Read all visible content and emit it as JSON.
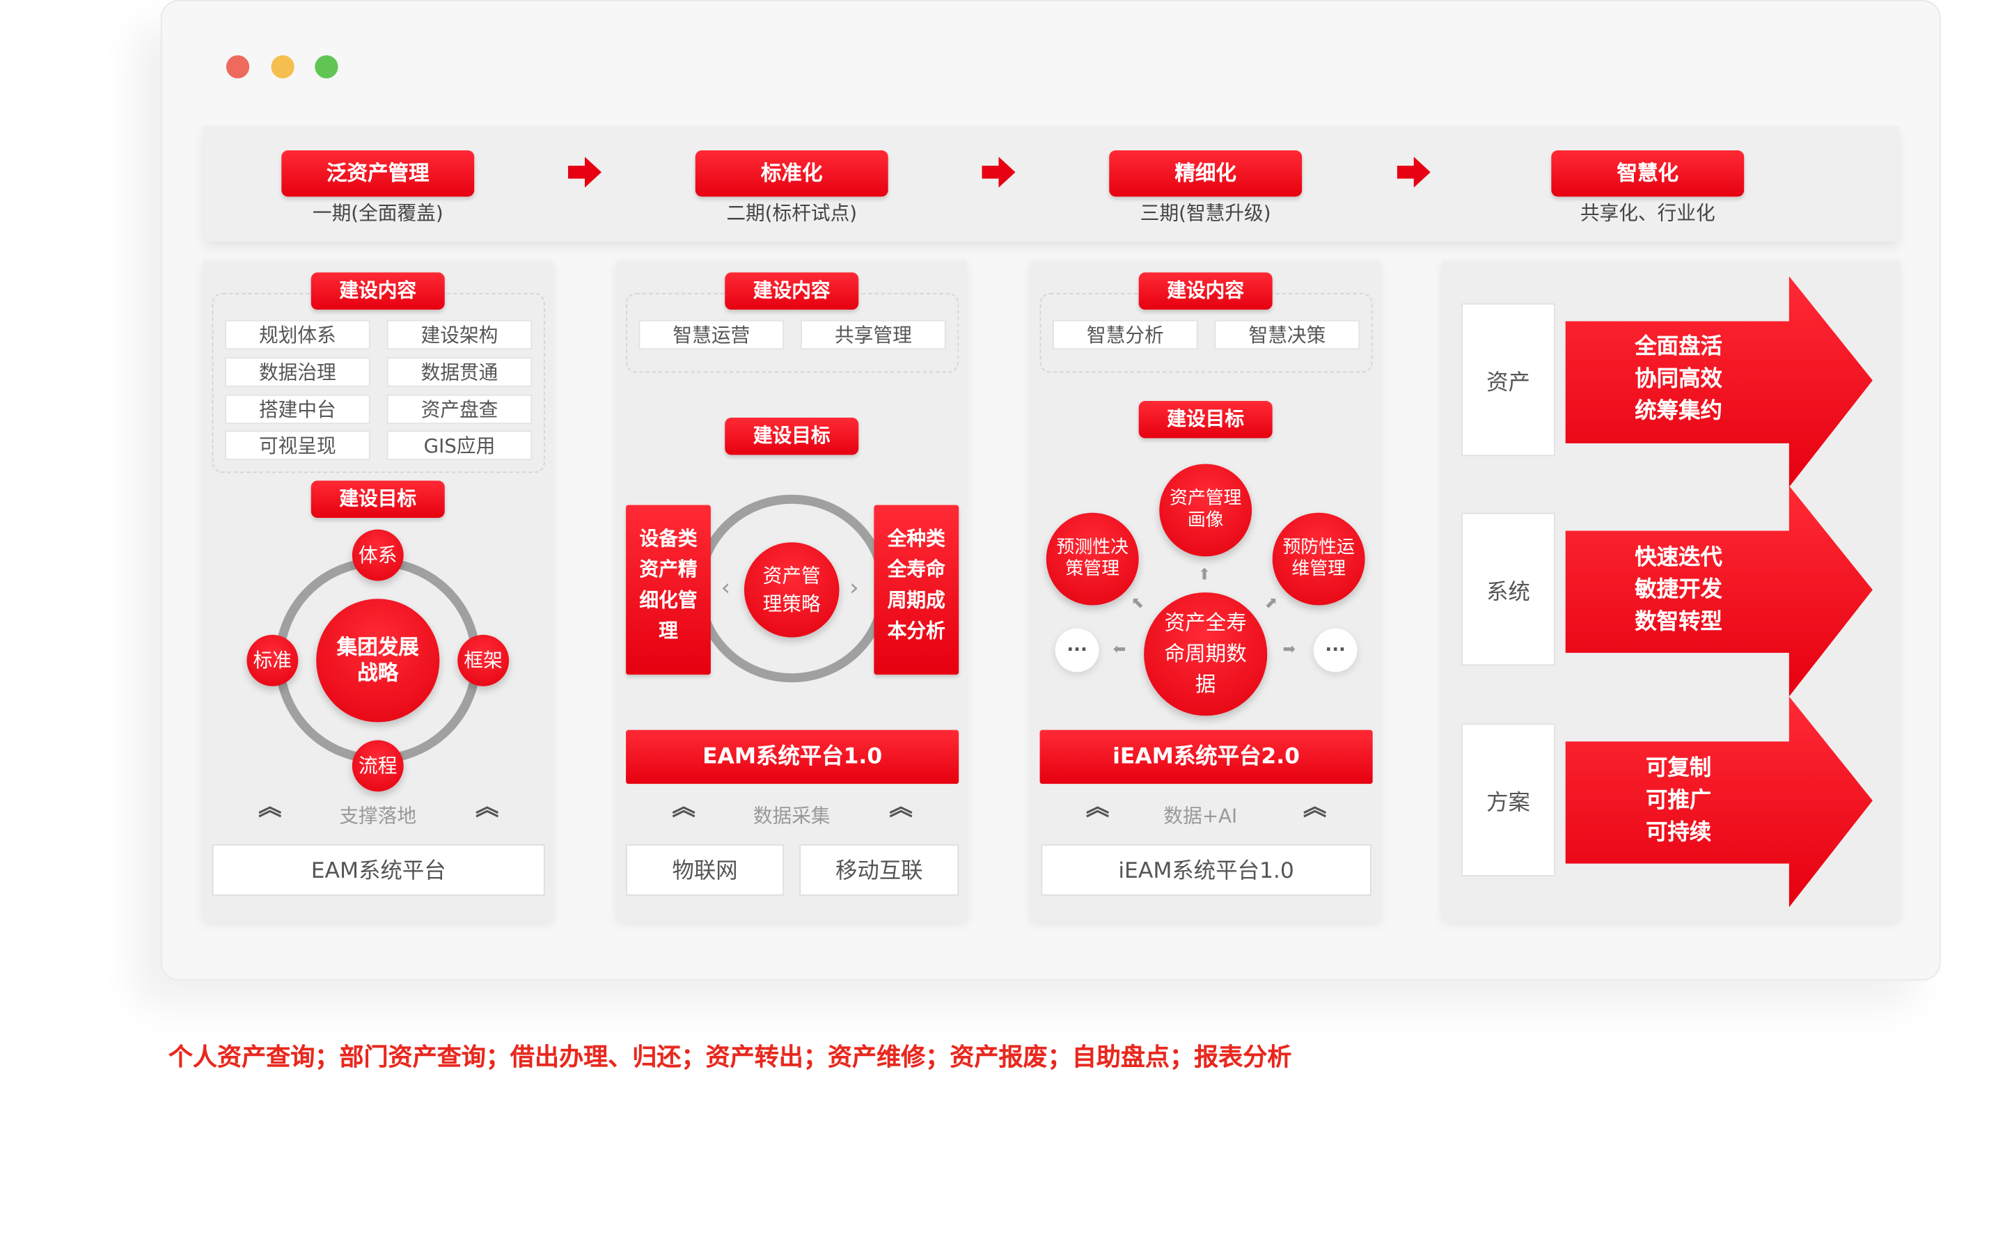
{
  "window_controls": {
    "close_color": "#ee6a5c",
    "minimize_color": "#f5bf4f",
    "maximize_color": "#61c554"
  },
  "accent_color": "#e60012",
  "stages": [
    {
      "title": "泛资产管理",
      "subtitle": "一期(全面覆盖)"
    },
    {
      "title": "标准化",
      "subtitle": "二期(标杆试点)"
    },
    {
      "title": "精细化",
      "subtitle": "三期(智慧升级)"
    },
    {
      "title": "智慧化",
      "subtitle": "共享化、行业化"
    }
  ],
  "panel1": {
    "content_label": "建设内容",
    "items": [
      "规划体系",
      "建设架构",
      "数据治理",
      "数据贯通",
      "搭建中台",
      "资产盘查",
      "可视呈现",
      "GIS应用"
    ],
    "goal_label": "建设目标",
    "center": "集团发展战略",
    "nodes": {
      "top": "体系",
      "left": "标准",
      "right": "框架",
      "bottom": "流程"
    },
    "support_label": "支撑落地",
    "platform": "EAM系统平台"
  },
  "panel2": {
    "content_label": "建设内容",
    "items": [
      "智慧运营",
      "共享管理"
    ],
    "goal_label": "建设目标",
    "left_box": "设备类资产精细化管理",
    "right_box": "全种类全寿命周期成本分析",
    "center": "资产管理策略",
    "platform": "EAM系统平台1.0",
    "support_label": "数据采集",
    "bases": [
      "物联网",
      "移动互联"
    ]
  },
  "panel3": {
    "content_label": "建设内容",
    "items": [
      "智慧分析",
      "智慧决策"
    ],
    "goal_label": "建设目标",
    "top": "资产管理画像",
    "left": "预测性决策管理",
    "right": "预防性运维管理",
    "center": "资产全寿命周期数据",
    "more": "···",
    "platform": "iEAM系统平台2.0",
    "support_label": "数据+AI",
    "base": "iEAM系统平台1.0"
  },
  "panel4": {
    "rows": [
      {
        "label": "资产",
        "lines": [
          "全面盘活",
          "协同高效",
          "统筹集约"
        ]
      },
      {
        "label": "系统",
        "lines": [
          "快速迭代",
          "敏捷开发",
          "数智转型"
        ]
      },
      {
        "label": "方案",
        "lines": [
          "可复制",
          "可推广",
          "可持续"
        ]
      }
    ]
  },
  "footer_text": "个人资产查询；部门资产查询；借出办理、归还；资产转出；资产维修；资产报废；自助盘点；报表分析"
}
